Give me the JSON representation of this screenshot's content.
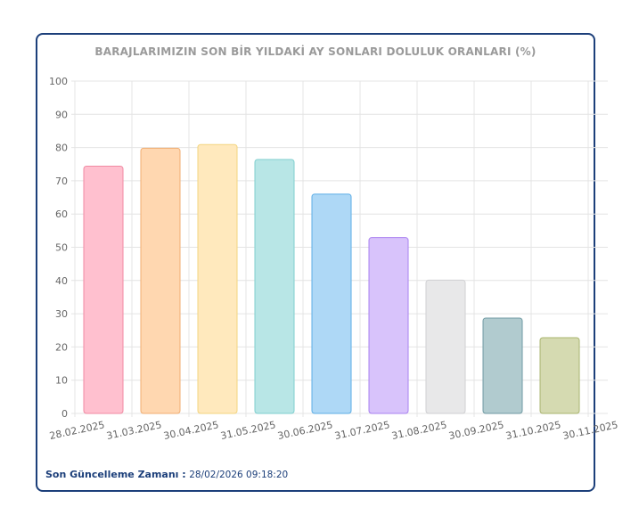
{
  "update": {
    "label": "Son Güncelleme Zamanı :",
    "value": "28/02/2026 09:18:20"
  },
  "colors": {
    "border": "#1c3f7a",
    "grid": "#e4e4e4",
    "axis_text": "#666666",
    "title": "#9a9a9a"
  },
  "chart_data": {
    "type": "bar",
    "title": "BARAJLARIMIZIN SON BİR YILDAKİ AY SONLARI DOLULUK ORANLARI (%)",
    "xlabel": "",
    "ylabel": "",
    "ylim": [
      0,
      100
    ],
    "yticks": [
      0,
      10,
      20,
      30,
      40,
      50,
      60,
      70,
      80,
      90,
      100
    ],
    "grid": true,
    "legend": "none",
    "categories": [
      "28.02.2025",
      "31.03.2025",
      "30.04.2025",
      "31.05.2025",
      "30.06.2025",
      "31.07.2025",
      "31.08.2025",
      "30.09.2025",
      "31.10.2025",
      "30.11.2025"
    ],
    "values": [
      74.4,
      79.8,
      80.9,
      76.4,
      66.0,
      52.9,
      40.1,
      28.7,
      22.8,
      null
    ],
    "bar_fills": [
      "#ffc0cf",
      "#ffd7b0",
      "#ffe9bd",
      "#b8e6e6",
      "#aed8f6",
      "#d8c3fb",
      "#e8e8e9",
      "#b1cbcf",
      "#d5dab1"
    ],
    "bar_strokes": [
      "#f08aa3",
      "#f1ae72",
      "#f3d57e",
      "#7fcfcf",
      "#5daee6",
      "#a980f0",
      "#cfcfd2",
      "#6f9aa3",
      "#a9b46e"
    ]
  }
}
